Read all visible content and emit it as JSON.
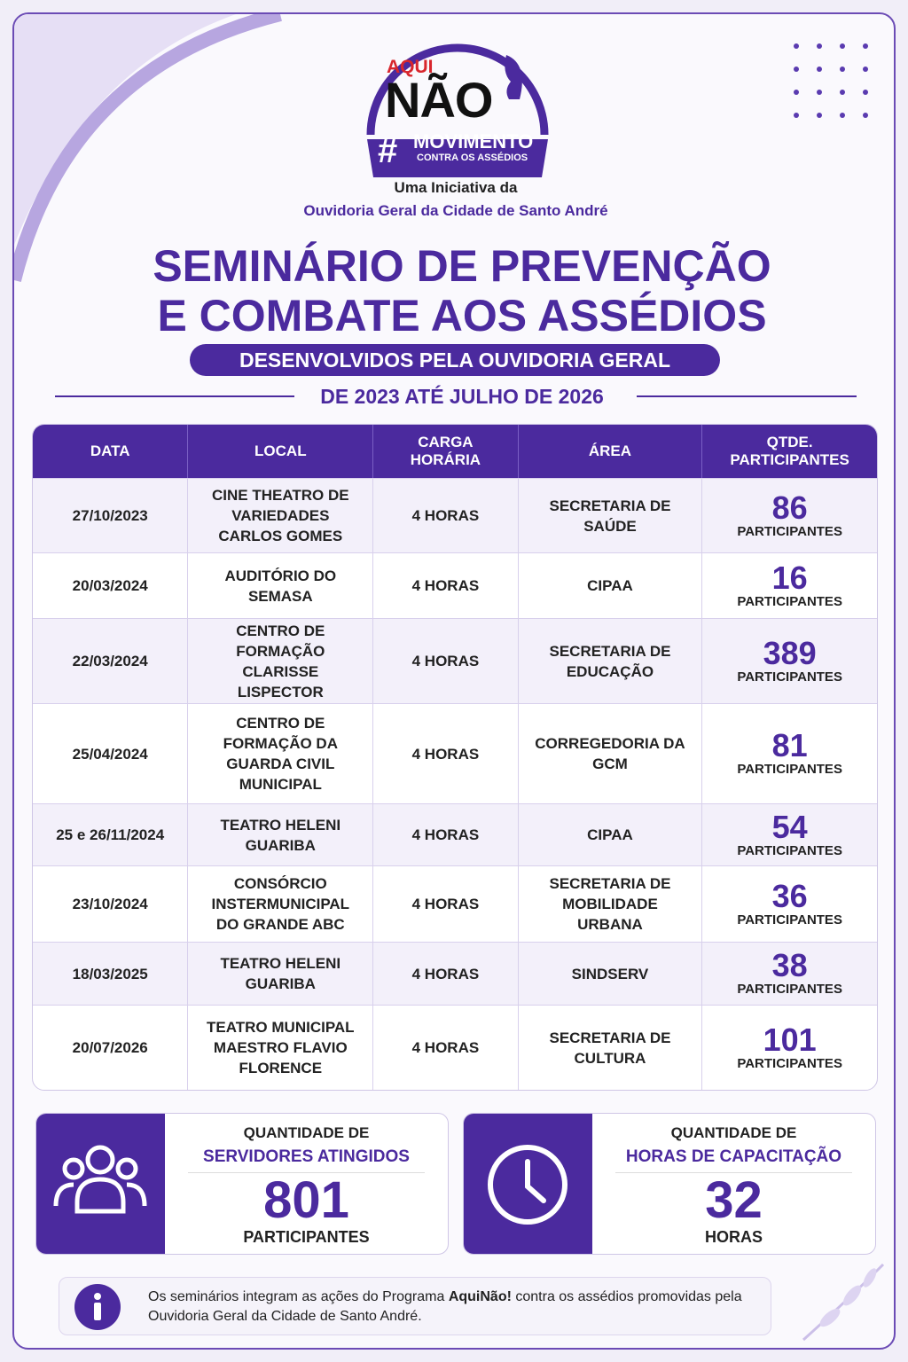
{
  "logo": {
    "aqui": "AQUI",
    "nao": "NÃO",
    "hash": "#",
    "movimento": "MOVIMENTO",
    "contra": "CONTRA OS ASSÉDIOS"
  },
  "header": {
    "initiative": "Uma Iniciativa da",
    "org": "Ouvidoria Geral da Cidade de Santo André",
    "title_line1": "SEMINÁRIO DE PREVENÇÃO",
    "title_line2": "E COMBATE AOS ASSÉDIOS",
    "badge": "DESENVOLVIDOS PELA OUVIDORIA GERAL",
    "period": "DE 2023 ATÉ JULHO DE 2026"
  },
  "table": {
    "columns": [
      "DATA",
      "LOCAL",
      "CARGA HORÁRIA",
      "ÁREA",
      "QTDE. PARTICIPANTES"
    ],
    "rows": [
      [
        "27/10/2023",
        "CINE THEATRO DE VARIEDADES CARLOS GOMES",
        "4 HORAS",
        "SECRETARIA DE SAÚDE",
        86,
        "PARTICIPANTES"
      ],
      [
        "20/03/2024",
        "AUDITÓRIO DO SEMASA",
        "4 HORAS",
        "CIPAA",
        16,
        "PARTICIPANTES"
      ],
      [
        "22/03/2024",
        "CENTRO DE FORMAÇÃO CLARISSE LISPECTOR",
        "4 HORAS",
        "SECRETARIA DE EDUCAÇÃO",
        389,
        "PARTICIPANTES"
      ],
      [
        "25/04/2024",
        "CENTRO DE FORMAÇÃO DA GUARDA CIVIL MUNICIPAL",
        "4 HORAS",
        "CORREGEDORIA DA GCM",
        81,
        "PARTICIPANTES"
      ],
      [
        "25 e 26/11/2024",
        "TEATRO HELENI GUARIBA",
        "4 HORAS",
        "CIPAA",
        54,
        "PARTICIPANTES"
      ],
      [
        "23/10/2024",
        "CONSÓRCIO INSTERMUNICIPAL DO GRANDE ABC",
        "4 HORAS",
        "SECRETARIA DE MOBILIDADE URBANA",
        36,
        "PARTICIPANTES"
      ],
      [
        "18/03/2025",
        "TEATRO HELENI GUARIBA",
        "4 HORAS",
        "SINDSERV",
        38,
        "PARTICIPANTES"
      ],
      [
        "20/07/2026",
        "TEATRO MUNICIPAL MAESTRO FLAVIO FLORENCE",
        "4 HORAS",
        "SECRETARIA DE CULTURA",
        101,
        "PARTICIPANTES"
      ]
    ]
  },
  "summary": [
    {
      "label_top": "QUANTIDADE DE",
      "label_main": "SERVIDORES ATINGIDOS",
      "value": 801,
      "unit": "PARTICIPANTES"
    },
    {
      "label_top": "QUANTIDADE DE",
      "label_main": "HORAS DE CAPACITAÇÃO",
      "value": 32,
      "unit": "HORAS"
    }
  ],
  "info": {
    "text_before": "Os seminários integram as ações do Programa ",
    "highlight": "AquiNão!",
    "text_after": " contra os assédios promovidas pela Ouvidoria Geral da Cidade de Santo André."
  }
}
